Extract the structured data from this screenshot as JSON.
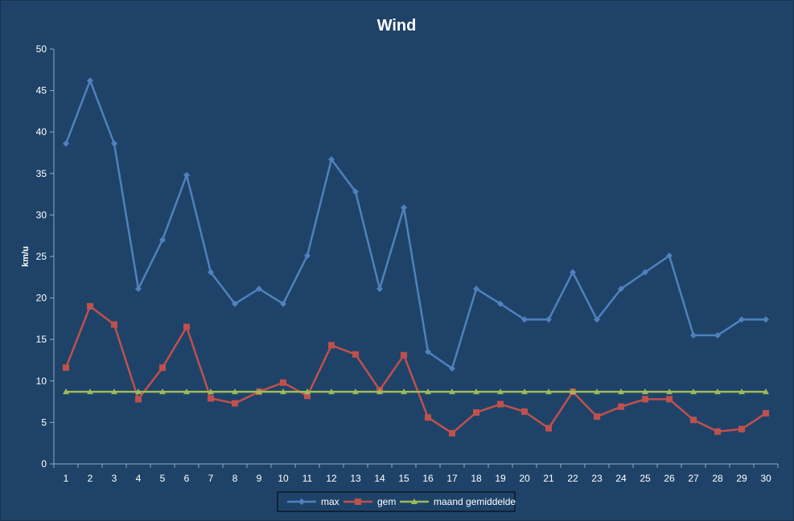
{
  "chart_data": {
    "type": "line",
    "title": "Wind",
    "xlabel": "",
    "ylabel": "km/u",
    "ylim": [
      0,
      50
    ],
    "yticks": [
      0,
      5,
      10,
      15,
      20,
      25,
      30,
      35,
      40,
      45,
      50
    ],
    "categories": [
      "1",
      "2",
      "3",
      "4",
      "5",
      "6",
      "7",
      "8",
      "9",
      "10",
      "11",
      "12",
      "13",
      "14",
      "15",
      "16",
      "17",
      "18",
      "19",
      "20",
      "21",
      "22",
      "23",
      "24",
      "25",
      "26",
      "27",
      "28",
      "29",
      "30"
    ],
    "grid": false,
    "legend_position": "bottom",
    "series": [
      {
        "name": "max",
        "color": "#4f81bd",
        "marker": "diamond",
        "values": [
          38.6,
          46.2,
          38.6,
          21.1,
          27.0,
          34.8,
          23.1,
          19.3,
          21.1,
          19.3,
          25.1,
          36.7,
          32.8,
          21.1,
          30.9,
          13.5,
          11.5,
          21.1,
          19.3,
          17.4,
          17.4,
          23.1,
          17.4,
          21.1,
          23.1,
          25.1,
          15.5,
          15.5,
          17.4,
          17.4
        ]
      },
      {
        "name": "gem",
        "color": "#c0504d",
        "marker": "square",
        "values": [
          11.6,
          19.0,
          16.8,
          7.8,
          11.6,
          16.5,
          7.9,
          7.3,
          8.7,
          9.8,
          8.2,
          14.3,
          13.2,
          8.9,
          13.1,
          5.6,
          3.7,
          6.2,
          7.2,
          6.3,
          4.3,
          8.7,
          5.7,
          6.9,
          7.8,
          7.8,
          5.3,
          3.9,
          4.2,
          6.1
        ]
      },
      {
        "name": "maand gemiddelde",
        "color": "#9bbb59",
        "marker": "triangle",
        "values": [
          8.7,
          8.7,
          8.7,
          8.7,
          8.7,
          8.7,
          8.7,
          8.7,
          8.7,
          8.7,
          8.7,
          8.7,
          8.7,
          8.7,
          8.7,
          8.7,
          8.7,
          8.7,
          8.7,
          8.7,
          8.7,
          8.7,
          8.7,
          8.7,
          8.7,
          8.7,
          8.7,
          8.7,
          8.7,
          8.7
        ]
      }
    ]
  }
}
